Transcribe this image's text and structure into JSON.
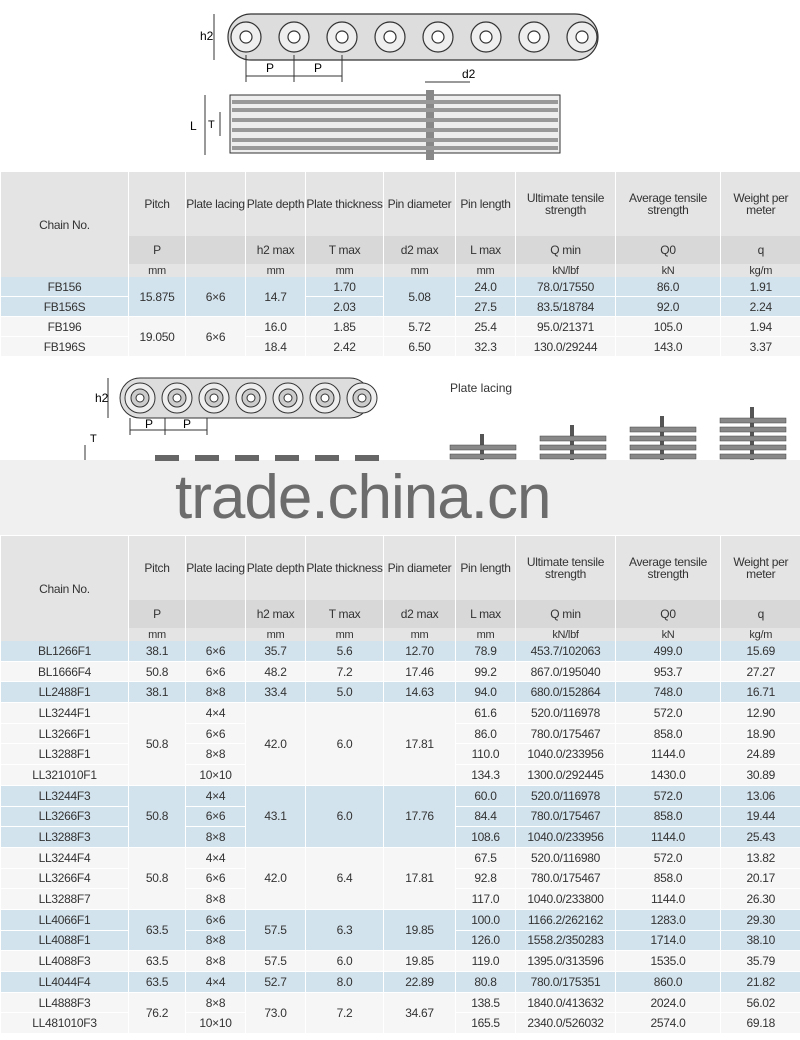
{
  "header_labels": {
    "chain_no": "Chain No.",
    "columns": [
      {
        "title": "Pitch",
        "symbol": "P",
        "unit": "mm"
      },
      {
        "title": "Plate lacing",
        "symbol": "",
        "unit": ""
      },
      {
        "title": "Plate depth",
        "symbol": "h2 max",
        "unit": "mm"
      },
      {
        "title": "Plate thickness",
        "symbol": "T max",
        "unit": "mm"
      },
      {
        "title": "Pin diameter",
        "symbol": "d2 max",
        "unit": "mm"
      },
      {
        "title": "Pin length",
        "symbol": "L max",
        "unit": "mm"
      },
      {
        "title": "Ultimate tensile strength",
        "symbol": "Q min",
        "unit": "kN/lbf"
      },
      {
        "title": "Average tensile strength",
        "symbol": "Q0",
        "unit": "kN"
      },
      {
        "title": "Weight per meter",
        "symbol": "q",
        "unit": "kg/m"
      }
    ]
  },
  "diagram1": {
    "labels": {
      "h2": "h2",
      "p1": "P",
      "p2": "P",
      "d2": "d2",
      "L": "L",
      "T": "T"
    }
  },
  "diagram2": {
    "labels": {
      "h2": "h2",
      "p1": "P",
      "p2": "P",
      "T": "T",
      "plate_lacing": "Plate lacing"
    }
  },
  "watermark": "trade.china.cn",
  "table1": {
    "rows": [
      [
        "FB156",
        "15.875",
        "6×6",
        "14.7",
        "1.70",
        "5.08",
        "24.0",
        "78.0/17550",
        "86.0",
        "1.91"
      ],
      [
        "FB156S",
        null,
        null,
        null,
        "2.03",
        null,
        "27.5",
        "83.5/18784",
        "92.0",
        "2.24"
      ],
      [
        "FB196",
        "19.050",
        "6×6",
        "16.0",
        "1.85",
        "5.72",
        "25.4",
        "95.0/21371",
        "105.0",
        "1.94"
      ],
      [
        "FB196S",
        null,
        null,
        "18.4",
        "2.42",
        "6.50",
        "32.3",
        "130.0/29244",
        "143.0",
        "3.37"
      ]
    ]
  },
  "table2": {
    "rows": [
      [
        "BL1266F1",
        "38.1",
        "6×6",
        "35.7",
        "5.6",
        "12.70",
        "78.9",
        "453.7/102063",
        "499.0",
        "15.69"
      ],
      [
        "BL1666F4",
        "50.8",
        "6×6",
        "48.2",
        "7.2",
        "17.46",
        "99.2",
        "867.0/195040",
        "953.7",
        "27.27"
      ],
      [
        "LL2488F1",
        "38.1",
        "8×8",
        "33.4",
        "5.0",
        "14.63",
        "94.0",
        "680.0/152864",
        "748.0",
        "16.71"
      ],
      [
        "LL3244F1",
        "50.8",
        "4×4",
        "42.0",
        "6.0",
        "17.81",
        "61.6",
        "520.0/116978",
        "572.0",
        "12.90"
      ],
      [
        "LL3266F1",
        null,
        "6×6",
        null,
        null,
        null,
        "86.0",
        "780.0/175467",
        "858.0",
        "18.90"
      ],
      [
        "LL3288F1",
        null,
        "8×8",
        null,
        null,
        null,
        "110.0",
        "1040.0/233956",
        "1144.0",
        "24.89"
      ],
      [
        "LL321010F1",
        null,
        "10×10",
        null,
        null,
        null,
        "134.3",
        "1300.0/292445",
        "1430.0",
        "30.89"
      ],
      [
        "LL3244F3",
        "50.8",
        "4×4",
        "43.1",
        "6.0",
        "17.76",
        "60.0",
        "520.0/116978",
        "572.0",
        "13.06"
      ],
      [
        "LL3266F3",
        null,
        "6×6",
        null,
        null,
        null,
        "84.4",
        "780.0/175467",
        "858.0",
        "19.44"
      ],
      [
        "LL3288F3",
        null,
        "8×8",
        null,
        null,
        null,
        "108.6",
        "1040.0/233956",
        "1144.0",
        "25.43"
      ],
      [
        "LL3244F4",
        "50.8",
        "4×4",
        "42.0",
        "6.4",
        "17.81",
        "67.5",
        "520.0/116980",
        "572.0",
        "13.82"
      ],
      [
        "LL3266F4",
        null,
        "6×6",
        null,
        null,
        null,
        "92.8",
        "780.0/175467",
        "858.0",
        "20.17"
      ],
      [
        "LL3288F7",
        null,
        "8×8",
        null,
        null,
        null,
        "117.0",
        "1040.0/233800",
        "1144.0",
        "26.30"
      ],
      [
        "LL4066F1",
        "63.5",
        "6×6",
        "57.5",
        "6.3",
        "19.85",
        "100.0",
        "1166.2/262162",
        "1283.0",
        "29.30"
      ],
      [
        "LL4088F1",
        null,
        "8×8",
        null,
        null,
        null,
        "126.0",
        "1558.2/350283",
        "1714.0",
        "38.10"
      ],
      [
        "LL4088F3",
        "63.5",
        "8×8",
        "57.5",
        "6.0",
        "19.85",
        "119.0",
        "1395.0/313596",
        "1535.0",
        "35.79"
      ],
      [
        "LL4044F4",
        "63.5",
        "4×4",
        "52.7",
        "8.0",
        "22.89",
        "80.8",
        "780.0/175351",
        "860.0",
        "21.82"
      ],
      [
        "LL4888F3",
        "76.2",
        "8×8",
        "73.0",
        "7.2",
        "34.67",
        "138.5",
        "1840.0/413632",
        "2024.0",
        "56.02"
      ],
      [
        "LL481010F3",
        null,
        "10×10",
        null,
        null,
        null,
        "165.5",
        "2340.0/526032",
        "2574.0",
        "69.18"
      ]
    ]
  },
  "colors": {
    "header_gray": "#e4e4e4",
    "row_blue": "#d3e3ed",
    "row_plain": "#f6f6f6"
  }
}
